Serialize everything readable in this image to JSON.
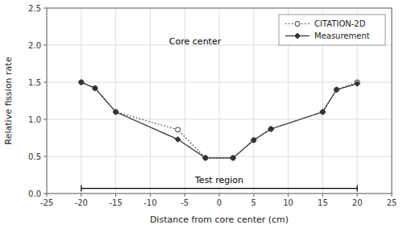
{
  "chart_data": {
    "type": "line",
    "x_label": "Distance from core center (cm)",
    "y_label": "Relative fission rate",
    "x": [
      -20,
      -18,
      -15,
      -6,
      -2,
      2,
      5,
      7.5,
      15,
      17,
      20
    ],
    "series": [
      {
        "name": "CITATION-2D",
        "color": "#333333",
        "marker": "circle-open",
        "line_style": "dotted",
        "values": [
          1.5,
          1.42,
          1.1,
          0.86,
          0.48,
          0.48,
          0.72,
          0.87,
          1.1,
          1.4,
          1.5
        ]
      },
      {
        "name": "Measurement",
        "color": "#333333",
        "marker": "diamond",
        "line_style": "solid",
        "values": [
          1.5,
          1.42,
          1.1,
          0.73,
          0.48,
          0.48,
          0.72,
          0.87,
          1.1,
          1.4,
          1.48
        ]
      }
    ],
    "xlim": [
      -25,
      25
    ],
    "ylim": [
      0.0,
      2.5
    ],
    "xticks": [
      -25,
      -20,
      -15,
      -10,
      -5,
      0,
      5,
      10,
      15,
      20,
      25
    ],
    "yticks": [
      {
        "value": 0.0,
        "label": "0.0"
      },
      0.5,
      {
        "value": 1.0,
        "label": "1.0"
      },
      1.5,
      {
        "value": 2.0,
        "label": "2.0"
      },
      2.5
    ],
    "grid": true,
    "legend": "upper right",
    "annotations": [
      {
        "text": "Core center"
      },
      {
        "text": "Test region",
        "x": [
          -20,
          20
        ],
        "y": 0.07
      }
    ]
  }
}
